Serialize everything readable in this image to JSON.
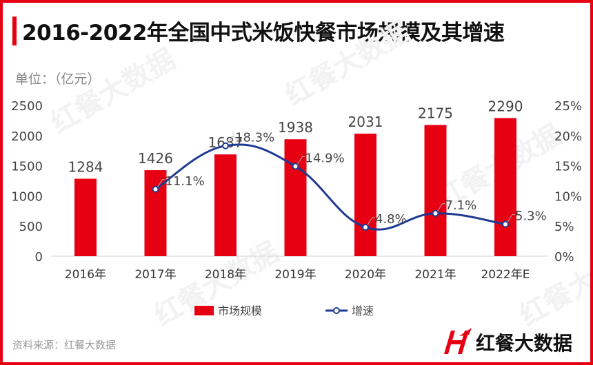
{
  "title": "2016-2022年全国中式米饭快餐市场规模及其增速",
  "unit": "单位：（亿元）",
  "source": "资料来源：红餐大数据",
  "logo_text": "红餐大数据",
  "watermark": "红餐大数据",
  "colors": {
    "bar": "#e60012",
    "line": "#1f3a93",
    "border": "#e60012"
  },
  "chart_data": {
    "type": "bar+line",
    "categories": [
      "2016年",
      "2017年",
      "2018年",
      "2019年",
      "2020年",
      "2021年",
      "2022年E"
    ],
    "series": [
      {
        "name": "市场规模",
        "type": "bar",
        "axis": "left",
        "values": [
          1284,
          1426,
          1687,
          1938,
          2031,
          2175,
          2290
        ],
        "labels": [
          "1284",
          "1426",
          "1687",
          "1938",
          "2031",
          "2175",
          "2290"
        ]
      },
      {
        "name": "增速",
        "type": "line",
        "axis": "right",
        "smooth": true,
        "values": [
          null,
          11.1,
          18.3,
          14.9,
          4.8,
          7.1,
          5.3
        ],
        "labels": [
          "",
          "11.1%",
          "18.3%",
          "14.9%",
          "4.8%",
          "7.1%",
          "5.3%"
        ]
      }
    ],
    "y_left": {
      "range": [
        0,
        2500
      ],
      "ticks": [
        "0",
        "500",
        "1000",
        "1500",
        "2000",
        "2500"
      ]
    },
    "y_right": {
      "range": [
        0,
        25
      ],
      "ticks": [
        "0%",
        "5%",
        "10%",
        "15%",
        "20%",
        "25%"
      ]
    },
    "grid": false,
    "legend": "bottom"
  }
}
